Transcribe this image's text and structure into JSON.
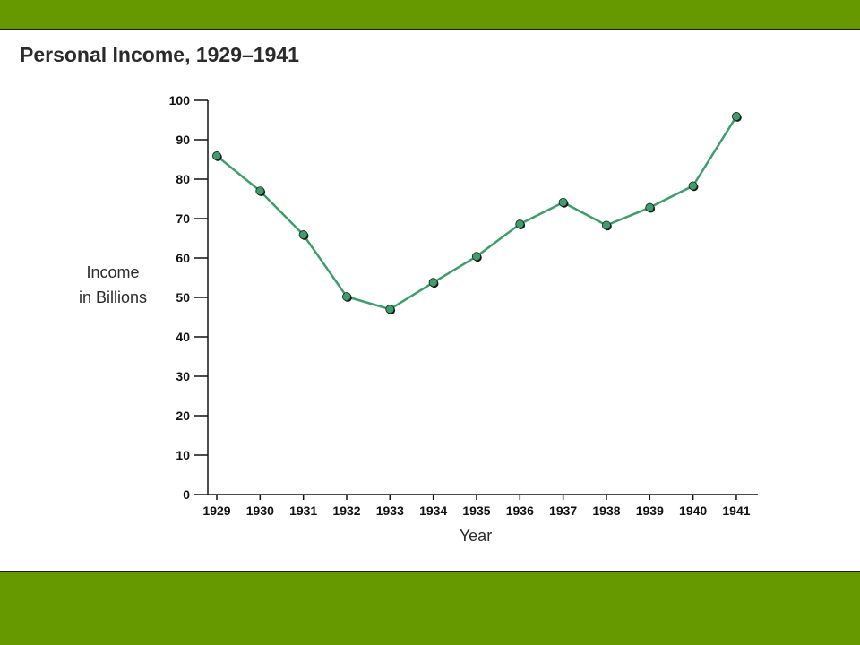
{
  "colors": {
    "band": "#669900",
    "series_line": "#3d9e6a",
    "marker_fill": "#3d9e6a",
    "marker_edge": "#1a1a1a",
    "axis": "#111111"
  },
  "chart_data": {
    "type": "line",
    "title": "Personal Income, 1929–1941",
    "xlabel": "Year",
    "ylabel": [
      "Income",
      "in Billions"
    ],
    "ylim": [
      0,
      100
    ],
    "yticks": [
      0,
      10,
      20,
      30,
      40,
      50,
      60,
      70,
      80,
      90,
      100
    ],
    "grid": false,
    "categories": [
      "1929",
      "1930",
      "1931",
      "1932",
      "1933",
      "1934",
      "1935",
      "1936",
      "1937",
      "1938",
      "1939",
      "1940",
      "1941"
    ],
    "series": [
      {
        "values": [
          85.9,
          77.0,
          65.9,
          50.2,
          47.0,
          53.8,
          60.4,
          68.6,
          74.1,
          68.3,
          72.8,
          78.3,
          95.9
        ]
      }
    ]
  }
}
